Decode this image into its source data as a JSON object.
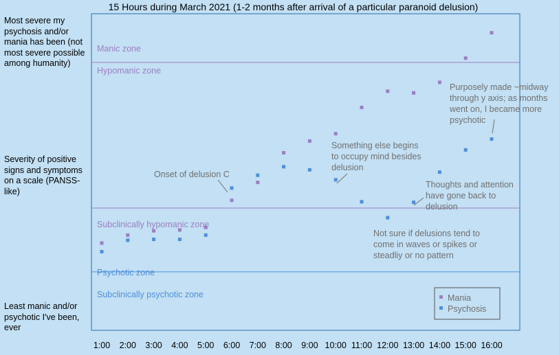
{
  "chart_data": {
    "type": "scatter",
    "title": "15 Hours during March 2021 (1-2 months after arrival of a particular paranoid delusion)",
    "xlabel": "",
    "ylabel": "",
    "categories": [
      "1:00",
      "2:00",
      "3:00",
      "4:00",
      "5:00",
      "6:00",
      "7:00",
      "8:00",
      "9:00",
      "10:00",
      "11:00",
      "12:00",
      "13:00",
      "14:00",
      "15:00",
      "16:00"
    ],
    "y_axis_labels": {
      "top": "Most severe my psychosis and/or mania has been (not most severe possible among humanity)",
      "middle": "Severity of positive signs and symptoms on a scale (PANSS-like)",
      "bottom": "Least manic and/or psychotic I've been, ever"
    },
    "ylim": [
      0,
      100
    ],
    "series": [
      {
        "name": "Mania",
        "color": "#9b7fc2",
        "points": [
          {
            "x": 1,
            "y": 25.3
          },
          {
            "x": 2,
            "y": 28.1
          },
          {
            "x": 3,
            "y": 29.6
          },
          {
            "x": 4,
            "y": 29.9
          },
          {
            "x": 5,
            "y": 30.8
          },
          {
            "x": 6,
            "y": 40.3
          },
          {
            "x": 7,
            "y": 46.6
          },
          {
            "x": 8,
            "y": 57.0
          },
          {
            "x": 9,
            "y": 61.1
          },
          {
            "x": 10,
            "y": 63.7
          },
          {
            "x": 11,
            "y": 72.9
          },
          {
            "x": 12,
            "y": 78.6
          },
          {
            "x": 13,
            "y": 78.0
          },
          {
            "x": 14,
            "y": 81.7
          },
          {
            "x": 15,
            "y": 90.2
          },
          {
            "x": 16,
            "y": 99.1
          }
        ]
      },
      {
        "name": "Psychosis",
        "color": "#4f8fd9",
        "points": [
          {
            "x": 1,
            "y": 22.3
          },
          {
            "x": 2,
            "y": 26.3
          },
          {
            "x": 3,
            "y": 26.6
          },
          {
            "x": 4,
            "y": 26.6
          },
          {
            "x": 5,
            "y": 28.1
          },
          {
            "x": 6,
            "y": 44.6
          },
          {
            "x": 7,
            "y": 49.1
          },
          {
            "x": 8,
            "y": 52.1
          },
          {
            "x": 9,
            "y": 51.0
          },
          {
            "x": 10,
            "y": 47.5
          },
          {
            "x": 11,
            "y": 39.8
          },
          {
            "x": 12,
            "y": 34.2
          },
          {
            "x": 13,
            "y": 39.6
          },
          {
            "x": 14,
            "y": 50.2
          },
          {
            "x": 15,
            "y": 58.0
          },
          {
            "x": 16,
            "y": 61.8
          }
        ]
      }
    ],
    "zones": [
      {
        "label": "Manic zone",
        "color": "#9b7fc2"
      },
      {
        "label": "Hypomanic zone",
        "color": "#9b7fc2"
      },
      {
        "label": "Subclinically hypomanic zone",
        "color": "#9b7fc2"
      },
      {
        "label": "Psychotic zone",
        "color": "#4f8fd9"
      },
      {
        "label": "Subclinically psychotic zone",
        "color": "#4f8fd9"
      }
    ],
    "zone_boundaries": [
      88.7,
      37.6,
      15.2
    ],
    "annotations": [
      {
        "id": "delusion-c",
        "lines": [
          "Onset of delusion C"
        ],
        "target": {
          "x": 6,
          "y": 44.6
        }
      },
      {
        "id": "something-else",
        "lines": [
          "Something else begins",
          "to occupy mind besides",
          "delusion"
        ],
        "target": {
          "x": 10,
          "y": 47.5
        }
      },
      {
        "id": "thoughts-back",
        "lines": [
          "Thoughts and attention",
          "have gone back to",
          "delusion"
        ],
        "target": {
          "x": 13,
          "y": 39.6
        }
      },
      {
        "id": "not-sure",
        "lines": [
          "Not sure if delusions tend to",
          "come in waves or spikes or",
          "steadliy or no pattern"
        ],
        "target": null
      },
      {
        "id": "purposely-made",
        "lines": [
          "Purposely made ~midway",
          "through y axis; as months",
          "went on, I became more",
          "psychotic"
        ],
        "target": {
          "x": 16,
          "y": 61.8
        }
      }
    ],
    "legend": {
      "placement": "bottom-right",
      "entries": [
        "Mania",
        "Psychosis"
      ]
    },
    "grid": false
  }
}
